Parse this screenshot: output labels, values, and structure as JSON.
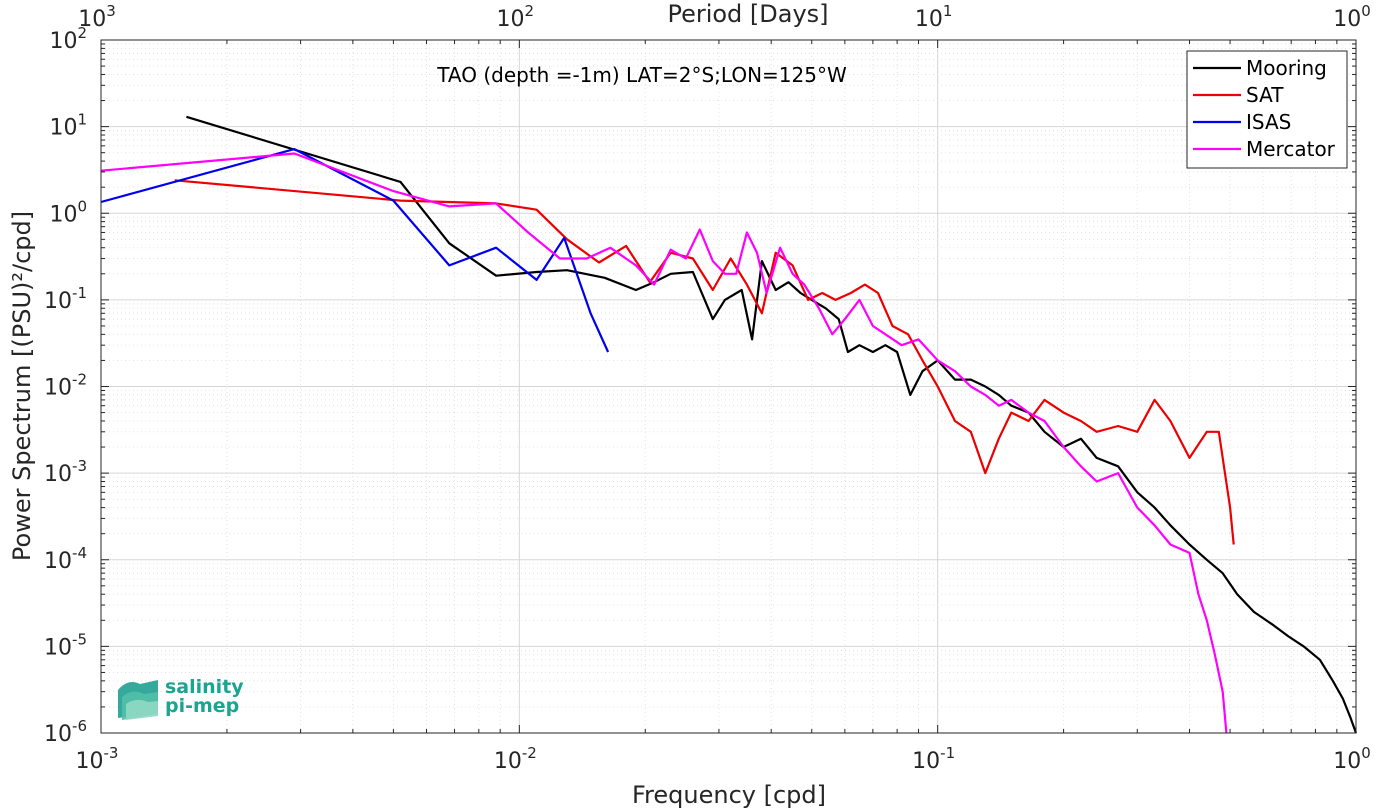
{
  "chart_data": {
    "type": "line",
    "title": "TAO (depth =-1m) LAT=2°S;LON=125°W",
    "xlabel": "Frequency [cpd]",
    "ylabel": "Power Spectrum [(PSU)²/cpd]",
    "x2label": "Period [Days]",
    "xscale": "log",
    "yscale": "log",
    "xlim": [
      0.001,
      1
    ],
    "ylim": [
      1e-06,
      100
    ],
    "grid": true,
    "legend_position": "top-right",
    "x_ticks": [
      {
        "base": "10",
        "exp": "-3"
      },
      {
        "base": "10",
        "exp": "-2"
      },
      {
        "base": "10",
        "exp": "-1"
      },
      {
        "base": "10",
        "exp": "0"
      }
    ],
    "x2_ticks": [
      {
        "base": "10",
        "exp": "3"
      },
      {
        "base": "10",
        "exp": "2"
      },
      {
        "base": "10",
        "exp": "1"
      },
      {
        "base": "10",
        "exp": "0"
      }
    ],
    "y_ticks": [
      {
        "base": "10",
        "exp": "-6"
      },
      {
        "base": "10",
        "exp": "-5"
      },
      {
        "base": "10",
        "exp": "-4"
      },
      {
        "base": "10",
        "exp": "-3"
      },
      {
        "base": "10",
        "exp": "-2"
      },
      {
        "base": "10",
        "exp": "-1"
      },
      {
        "base": "10",
        "exp": "0"
      },
      {
        "base": "10",
        "exp": "1"
      },
      {
        "base": "10",
        "exp": "2"
      }
    ],
    "series": [
      {
        "name": "Mooring",
        "color": "#000000",
        "x": [
          0.0016,
          0.0052,
          0.0068,
          0.0088,
          0.011,
          0.013,
          0.016,
          0.019,
          0.021,
          0.023,
          0.026,
          0.029,
          0.031,
          0.034,
          0.036,
          0.038,
          0.041,
          0.044,
          0.047,
          0.05,
          0.054,
          0.058,
          0.061,
          0.065,
          0.07,
          0.075,
          0.08,
          0.086,
          0.092,
          0.1,
          0.11,
          0.12,
          0.13,
          0.14,
          0.15,
          0.165,
          0.18,
          0.2,
          0.22,
          0.24,
          0.27,
          0.3,
          0.33,
          0.36,
          0.4,
          0.44,
          0.48,
          0.52,
          0.57,
          0.63,
          0.69,
          0.75,
          0.82,
          0.88,
          0.93,
          0.97,
          1.0
        ],
        "y": [
          13,
          2.3,
          0.45,
          0.19,
          0.21,
          0.22,
          0.18,
          0.13,
          0.16,
          0.2,
          0.21,
          0.06,
          0.1,
          0.13,
          0.035,
          0.28,
          0.13,
          0.16,
          0.12,
          0.1,
          0.08,
          0.06,
          0.025,
          0.03,
          0.025,
          0.03,
          0.025,
          0.008,
          0.015,
          0.02,
          0.012,
          0.012,
          0.01,
          0.008,
          0.006,
          0.005,
          0.003,
          0.002,
          0.0025,
          0.0015,
          0.0012,
          0.0006,
          0.0004,
          0.00025,
          0.00015,
          0.0001,
          7e-05,
          4e-05,
          2.5e-05,
          1.8e-05,
          1.3e-05,
          1e-05,
          7e-06,
          4e-06,
          2.5e-06,
          1.5e-06,
          1e-06
        ]
      },
      {
        "name": "SAT",
        "color": "#ee0000",
        "x": [
          0.0015,
          0.0052,
          0.0088,
          0.011,
          0.013,
          0.0155,
          0.018,
          0.0205,
          0.023,
          0.026,
          0.029,
          0.032,
          0.035,
          0.038,
          0.041,
          0.045,
          0.049,
          0.053,
          0.057,
          0.062,
          0.067,
          0.072,
          0.078,
          0.085,
          0.092,
          0.1,
          0.11,
          0.12,
          0.13,
          0.14,
          0.15,
          0.165,
          0.18,
          0.2,
          0.22,
          0.24,
          0.27,
          0.3,
          0.33,
          0.36,
          0.4,
          0.44,
          0.47,
          0.5,
          0.51
        ],
        "y": [
          2.4,
          1.4,
          1.3,
          1.1,
          0.5,
          0.27,
          0.42,
          0.16,
          0.35,
          0.3,
          0.13,
          0.3,
          0.15,
          0.07,
          0.35,
          0.25,
          0.1,
          0.12,
          0.1,
          0.12,
          0.15,
          0.12,
          0.05,
          0.04,
          0.02,
          0.01,
          0.004,
          0.003,
          0.001,
          0.0025,
          0.005,
          0.004,
          0.007,
          0.005,
          0.004,
          0.003,
          0.0035,
          0.003,
          0.007,
          0.004,
          0.0015,
          0.003,
          0.003,
          0.0004,
          0.00015
        ]
      },
      {
        "name": "ISAS",
        "color": "#0000ee",
        "x": [
          0.001,
          0.0029,
          0.005,
          0.0068,
          0.0088,
          0.011,
          0.0128,
          0.0148,
          0.0163
        ],
        "y": [
          1.35,
          5.5,
          1.4,
          0.25,
          0.4,
          0.17,
          0.52,
          0.07,
          0.025
        ]
      },
      {
        "name": "Mercator",
        "color": "#ff00ff",
        "x": [
          0.001,
          0.0029,
          0.005,
          0.0068,
          0.0088,
          0.0105,
          0.0125,
          0.0145,
          0.0165,
          0.019,
          0.021,
          0.023,
          0.025,
          0.027,
          0.029,
          0.031,
          0.033,
          0.035,
          0.037,
          0.039,
          0.042,
          0.045,
          0.048,
          0.052,
          0.056,
          0.06,
          0.065,
          0.07,
          0.075,
          0.082,
          0.09,
          0.1,
          0.11,
          0.12,
          0.13,
          0.14,
          0.15,
          0.165,
          0.18,
          0.2,
          0.22,
          0.24,
          0.27,
          0.3,
          0.33,
          0.36,
          0.4,
          0.42,
          0.44,
          0.46,
          0.48,
          0.49
        ],
        "y": [
          3.1,
          4.9,
          1.8,
          1.2,
          1.3,
          0.6,
          0.3,
          0.3,
          0.4,
          0.25,
          0.15,
          0.38,
          0.3,
          0.65,
          0.28,
          0.2,
          0.2,
          0.6,
          0.35,
          0.12,
          0.4,
          0.2,
          0.15,
          0.08,
          0.04,
          0.06,
          0.1,
          0.05,
          0.04,
          0.03,
          0.035,
          0.02,
          0.015,
          0.01,
          0.008,
          0.006,
          0.007,
          0.005,
          0.004,
          0.002,
          0.0012,
          0.0008,
          0.001,
          0.0004,
          0.00025,
          0.00015,
          0.00012,
          4e-05,
          2e-05,
          8e-06,
          3e-06,
          1e-06
        ]
      }
    ]
  },
  "logo": {
    "line1": "salinity",
    "line2": "pi-mep",
    "color": "#1aa591"
  }
}
